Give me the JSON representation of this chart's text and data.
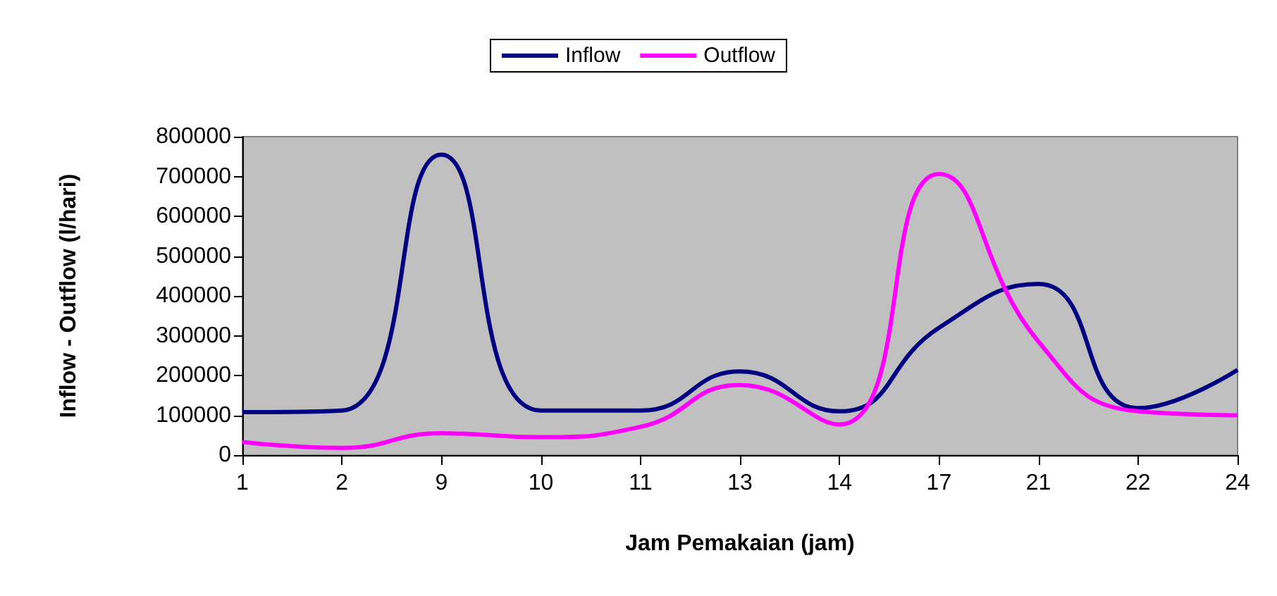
{
  "chart_data": {
    "type": "line",
    "xlabel": "Jam Pemakaian (jam)",
    "ylabel": "Inflow - Outflow (l/hari)",
    "categories": [
      "1",
      "2",
      "9",
      "10",
      "11",
      "13",
      "14",
      "17",
      "21",
      "22",
      "24"
    ],
    "series": [
      {
        "name": "Inflow",
        "color": "#000080",
        "values": [
          108000,
          112000,
          755000,
          112000,
          112000,
          210000,
          110000,
          320000,
          430000,
          118000,
          214000
        ]
      },
      {
        "name": "Outflow",
        "color": "#ff00ff",
        "values": [
          33000,
          18000,
          55000,
          45000,
          71000,
          176000,
          77000,
          706000,
          285000,
          110000,
          100000
        ]
      }
    ],
    "ylim": [
      0,
      800000
    ],
    "yticks": [
      0,
      100000,
      200000,
      300000,
      400000,
      500000,
      600000,
      700000,
      800000
    ],
    "grid": false,
    "legend": "top",
    "marker": "none",
    "line_style": "solid"
  }
}
